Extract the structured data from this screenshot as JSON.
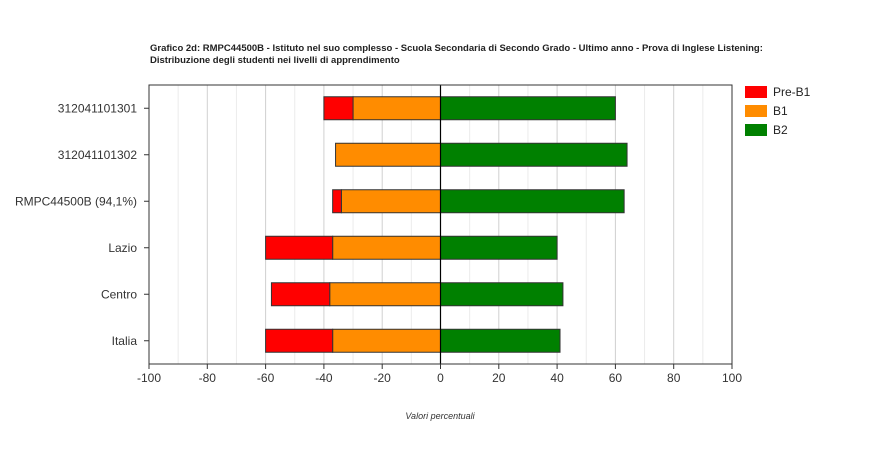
{
  "chart_data": {
    "type": "bar",
    "orientation": "horizontal-diverging",
    "title_line1": "Grafico 2d: RMPC44500B - Istituto nel suo complesso - Scuola Secondaria di Secondo Grado - Ultimo anno - Prova di Inglese Listening:",
    "title_line2": "Distribuzione degli studenti nei livelli di apprendimento",
    "xlabel": "Valori percentuali",
    "xlim": [
      -100,
      100
    ],
    "xticks": [
      -100,
      -80,
      -60,
      -40,
      -20,
      0,
      20,
      40,
      60,
      80,
      100
    ],
    "grid": true,
    "legend_position": "right",
    "categories": [
      "312041101301",
      "312041101302",
      "RMPC44500B (94,1%)",
      "Lazio",
      "Centro",
      "Italia"
    ],
    "series": [
      {
        "name": "Pre-B1",
        "color": "#ff0000",
        "values": [
          10,
          0,
          3,
          23,
          20,
          23
        ]
      },
      {
        "name": "B1",
        "color": "#ff8c00",
        "values": [
          30,
          36,
          34,
          37,
          38,
          37
        ]
      },
      {
        "name": "B2",
        "color": "#008000",
        "values": [
          60,
          64,
          63,
          40,
          42,
          41
        ]
      }
    ]
  }
}
